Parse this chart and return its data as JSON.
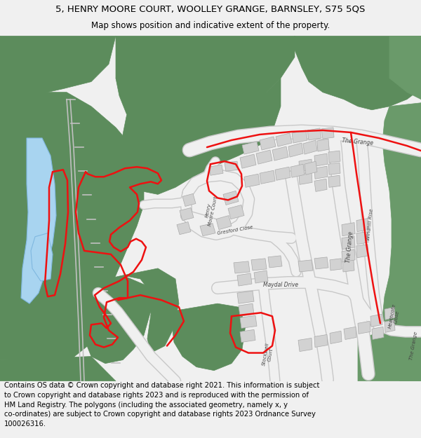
{
  "title_line1": "5, HENRY MOORE COURT, WOOLLEY GRANGE, BARNSLEY, S75 5QS",
  "title_line2": "Map shows position and indicative extent of the property.",
  "footer_text": "Contains OS data © Crown copyright and database right 2021. This information is subject\nto Crown copyright and database rights 2023 and is reproduced with the permission of\nHM Land Registry. The polygons (including the associated geometry, namely x, y\nco-ordinates) are subject to Crown copyright and database rights 2023 Ordnance Survey\n100026316.",
  "bg_color": "#f0f0f0",
  "map_bg": "#ffffff",
  "green": "#5c8c5c",
  "road_fill": "#f0f0f0",
  "road_edge": "#c8c8c8",
  "bld_fill": "#d2d2d2",
  "bld_edge": "#aaaaaa",
  "water": "#a8d4f0",
  "water_edge": "#80b8e0",
  "red": "#ee1111",
  "lbl": "#444444",
  "title_fs": 9.5,
  "sub_fs": 8.5,
  "foot_fs": 7.2
}
